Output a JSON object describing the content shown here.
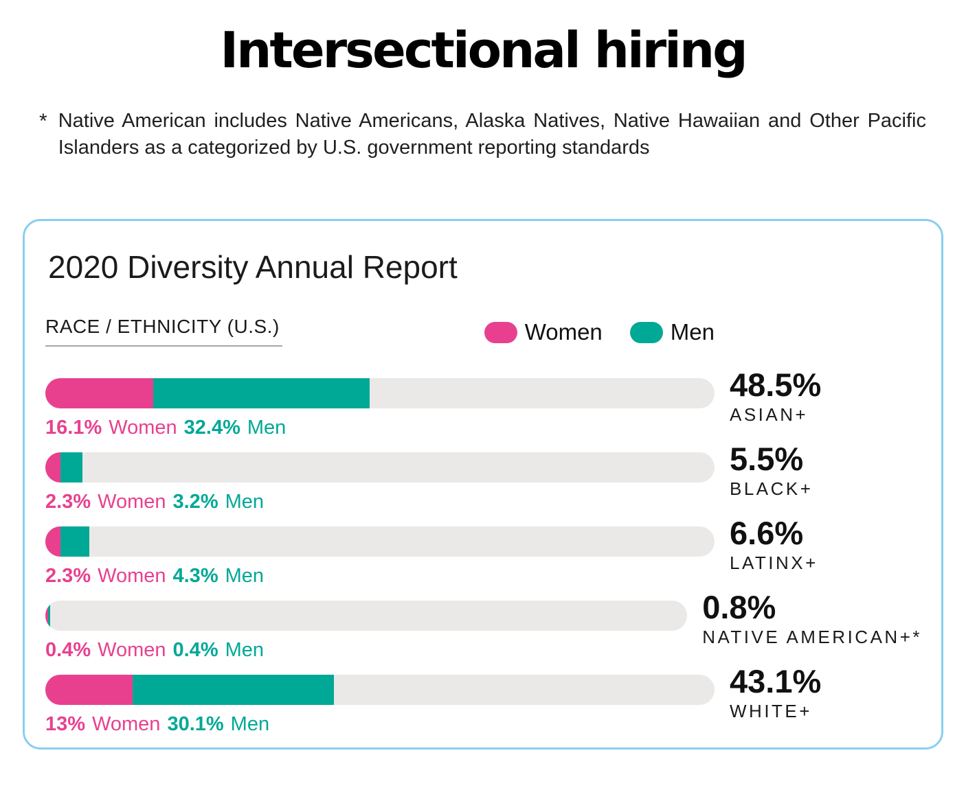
{
  "page": {
    "title": "Intersectional hiring",
    "footnote_marker": "*",
    "footnote": "Native American includes Native Americans, Alaska Natives, Native Hawaiian and Other Pacific Islanders as a categorized by U.S. government reporting standards"
  },
  "card": {
    "title": "2020 Diversity Annual Report",
    "section_label": "RACE / ETHNICITY (U.S.)",
    "border_color": "#8ACEF0",
    "legend": [
      {
        "label": "Women",
        "color": "#E8408F"
      },
      {
        "label": "Men",
        "color": "#00A896"
      }
    ]
  },
  "chart_data": {
    "type": "bar",
    "orientation": "horizontal",
    "stacked": true,
    "title": "2020 Diversity Annual Report",
    "subtitle": "RACE / ETHNICITY (U.S.)",
    "categories": [
      "ASIAN+",
      "BLACK+",
      "LATINX+",
      "NATIVE AMERICAN+*",
      "WHITE+"
    ],
    "series": [
      {
        "name": "Women",
        "color": "#E8408F",
        "values": [
          16.1,
          2.3,
          2.3,
          0.4,
          13
        ]
      },
      {
        "name": "Men",
        "color": "#00A896",
        "values": [
          32.4,
          3.2,
          4.3,
          0.4,
          30.1
        ]
      }
    ],
    "totals": [
      48.5,
      5.5,
      6.6,
      0.8,
      43.1
    ],
    "xlim": [
      0,
      100
    ],
    "grid": false,
    "track_color": "#EAE9E7",
    "legend_position": "top-right"
  },
  "rows": [
    {
      "category": "ASIAN+",
      "total_label": "48.5%",
      "women_val": 16.1,
      "women_pct_label": "16.1%",
      "women_word": "Women",
      "men_val": 32.4,
      "men_pct_label": "32.4%",
      "men_word": "Men"
    },
    {
      "category": "BLACK+",
      "total_label": "5.5%",
      "women_val": 2.3,
      "women_pct_label": "2.3%",
      "women_word": "Women",
      "men_val": 3.2,
      "men_pct_label": "3.2%",
      "men_word": "Men"
    },
    {
      "category": "LATINX+",
      "total_label": "6.6%",
      "women_val": 2.3,
      "women_pct_label": "2.3%",
      "women_word": "Women",
      "men_val": 4.3,
      "men_pct_label": "4.3%",
      "men_word": "Men"
    },
    {
      "category": "NATIVE AMERICAN+*",
      "total_label": "0.8%",
      "women_val": 0.4,
      "women_pct_label": "0.4%",
      "women_word": "Women",
      "men_val": 0.4,
      "men_pct_label": "0.4%",
      "men_word": "Men"
    },
    {
      "category": "WHITE+",
      "total_label": "43.1%",
      "women_val": 13,
      "women_pct_label": "13%",
      "women_word": "Women",
      "men_val": 30.1,
      "men_pct_label": "30.1%",
      "men_word": "Men"
    }
  ]
}
